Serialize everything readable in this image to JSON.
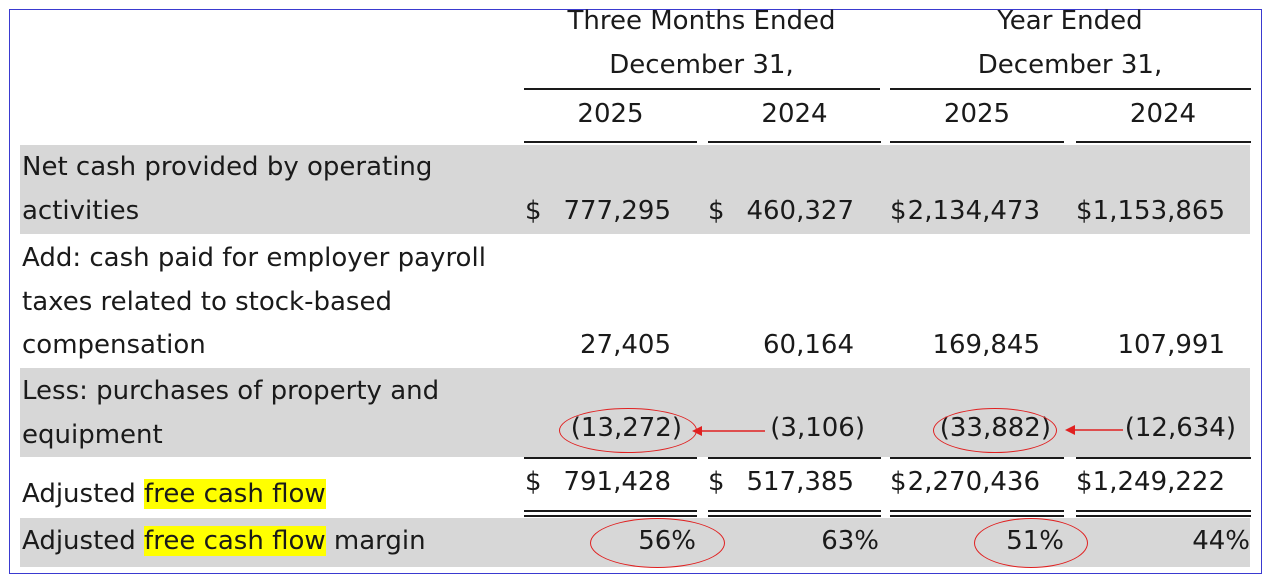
{
  "table": {
    "header": {
      "group1": [
        "Three Months Ended",
        "December 31,"
      ],
      "group2": [
        "Year Ended",
        "December 31,"
      ],
      "years": [
        "2025",
        "2024",
        "2025",
        "2024"
      ]
    },
    "currency": "$",
    "rows": [
      {
        "label": [
          "Net cash provided by operating",
          "activities"
        ],
        "values": [
          "777,295",
          "460,327",
          "2,134,473",
          "1,153,865"
        ]
      },
      {
        "label": [
          "Add: cash paid for employer payroll",
          "taxes related to stock-based",
          "compensation"
        ],
        "values": [
          "27,405",
          "60,164",
          "169,845",
          "107,991"
        ]
      },
      {
        "label": [
          "Less: purchases of property and",
          "equipment"
        ],
        "values": [
          "(13,272)",
          "(3,106)",
          "(33,882)",
          "(12,634)"
        ]
      },
      {
        "label_prefix": "Adjusted ",
        "label_highlight": "free cash flow",
        "values": [
          "791,428",
          "517,385",
          "2,270,436",
          "1,249,222"
        ]
      },
      {
        "label_prefix": "Adjusted ",
        "label_highlight": "free cash flow",
        "label_suffix": " margin",
        "values": [
          "56%",
          "63%",
          "51%",
          "44%"
        ]
      }
    ]
  },
  "colors": {
    "band": "#d7d7d7",
    "highlight": "#ffff00",
    "annotation": "#e02020",
    "border": "#3a3ad0"
  }
}
